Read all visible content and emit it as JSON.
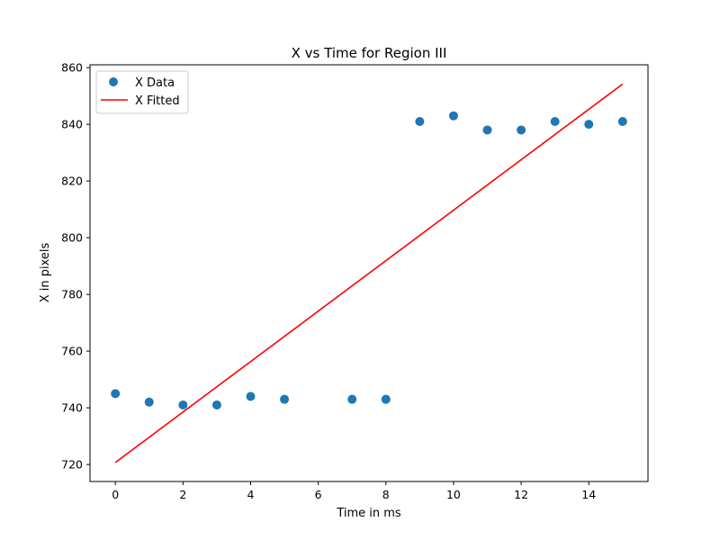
{
  "chart_data": {
    "type": "scatter",
    "title": "X vs Time for Region III",
    "xlabel": "Time in ms",
    "ylabel": "X in pixels",
    "xlim": [
      -0.75,
      15.75
    ],
    "ylim": [
      714,
      861
    ],
    "xticks": [
      0,
      2,
      4,
      6,
      8,
      10,
      12,
      14
    ],
    "yticks": [
      720,
      740,
      760,
      780,
      800,
      820,
      840,
      860
    ],
    "grid": false,
    "legend_position": "top-left",
    "series": [
      {
        "name": "X Data",
        "kind": "scatter",
        "color": "#1f77b4",
        "x": [
          0,
          1,
          2,
          3,
          4,
          5,
          7,
          8,
          9,
          10,
          11,
          12,
          13,
          14,
          15
        ],
        "y": [
          745,
          742,
          741,
          741,
          744,
          743,
          743,
          743,
          841,
          843,
          838,
          838,
          841,
          840,
          841
        ]
      },
      {
        "name": "X Fitted",
        "kind": "line",
        "color": "#ff0000",
        "x": [
          0,
          15
        ],
        "y": [
          720.7,
          854.2
        ]
      }
    ]
  }
}
